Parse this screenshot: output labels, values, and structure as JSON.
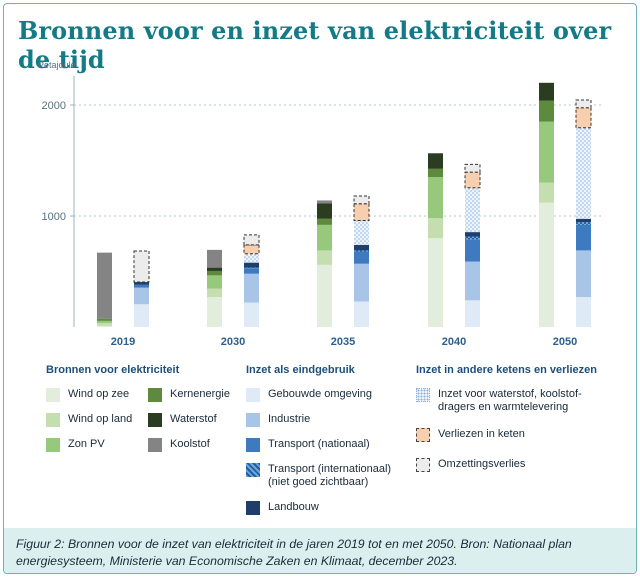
{
  "title": "Bronnen voor en inzet van elektriciteit over de tijd",
  "caption": "Figuur 2: Bronnen voor de inzet van elektriciteit in de jaren 2019 tot en met 2050. Bron: Nationaal plan energiesysteem, Ministerie van Economische Zaken en Klimaat, december 2023.",
  "legend": {
    "sources_title": "Bronnen voor elektriciteit",
    "use_title": "Inzet als eindgebruik",
    "chains_title": "Inzet in andere ketens en verliezen",
    "sources": [
      {
        "label": "Wind op zee",
        "color": "#e2eedb"
      },
      {
        "label": "Kernenergie",
        "color": "#5e8a3e"
      },
      {
        "label": "Wind op land",
        "color": "#c4deb0"
      },
      {
        "label": "Waterstof",
        "color": "#2a3d20"
      },
      {
        "label": "Zon PV",
        "color": "#97c97c"
      },
      {
        "label": "Koolstof",
        "color": "#848484"
      }
    ],
    "uses": [
      {
        "label": "Gebouwde omgeving",
        "color": "#deebf7"
      },
      {
        "label": "Industrie",
        "color": "#a8c5e8"
      },
      {
        "label": "Transport (nationaal)",
        "color": "#3d7ac0"
      },
      {
        "label": "Transport (internationaal)\n(niet goed zichtbaar)",
        "color": "#2f6fb3"
      },
      {
        "label": "Landbouw",
        "color": "#1f3e6c"
      }
    ],
    "chains": [
      {
        "label": "Inzet voor waterstof, koolstof-\ndragers en warmtelevering",
        "color": "#b9d2ee"
      },
      {
        "label": "Verliezen in keten",
        "color": "#f7cfae"
      },
      {
        "label": "Omzettingsverlies",
        "color": "#ececec"
      }
    ]
  },
  "chart_data": {
    "type": "bar",
    "y_unit": "Petajoule",
    "yticks": [
      1000,
      2000
    ],
    "ylim": [
      0,
      2200
    ],
    "categories": [
      "2019",
      "2030",
      "2035",
      "2040",
      "2050"
    ],
    "supply_series": [
      {
        "name": "Wind op zee",
        "values": [
          10,
          270,
          560,
          800,
          1120
        ]
      },
      {
        "name": "Wind op land",
        "values": [
          25,
          75,
          130,
          180,
          180
        ]
      },
      {
        "name": "Zon PV",
        "values": [
          20,
          120,
          230,
          370,
          550
        ]
      },
      {
        "name": "Kernenergie",
        "values": [
          20,
          40,
          55,
          75,
          190
        ]
      },
      {
        "name": "Waterstof",
        "values": [
          0,
          30,
          140,
          140,
          160
        ]
      },
      {
        "name": "Koolstof",
        "values": [
          595,
          160,
          25,
          0,
          0
        ]
      }
    ],
    "use_series": [
      {
        "name": "Gebouwde omgeving",
        "values": [
          205,
          220,
          230,
          240,
          270
        ]
      },
      {
        "name": "Industrie",
        "values": [
          150,
          260,
          340,
          350,
          420
        ]
      },
      {
        "name": "Transport (nationaal)",
        "values": [
          25,
          50,
          110,
          200,
          230
        ]
      },
      {
        "name": "Transport (internationaal)",
        "values": [
          0,
          5,
          10,
          25,
          25
        ]
      },
      {
        "name": "Landbouw",
        "values": [
          25,
          45,
          50,
          40,
          30
        ]
      },
      {
        "name": "Inzet voor waterstof, koolstofdragers en warmtelevering",
        "values": [
          0,
          80,
          220,
          400,
          820
        ]
      },
      {
        "name": "Verliezen in keten",
        "values": [
          0,
          80,
          150,
          140,
          180
        ]
      },
      {
        "name": "Omzettingsverlies",
        "values": [
          280,
          90,
          70,
          70,
          70
        ]
      }
    ]
  }
}
